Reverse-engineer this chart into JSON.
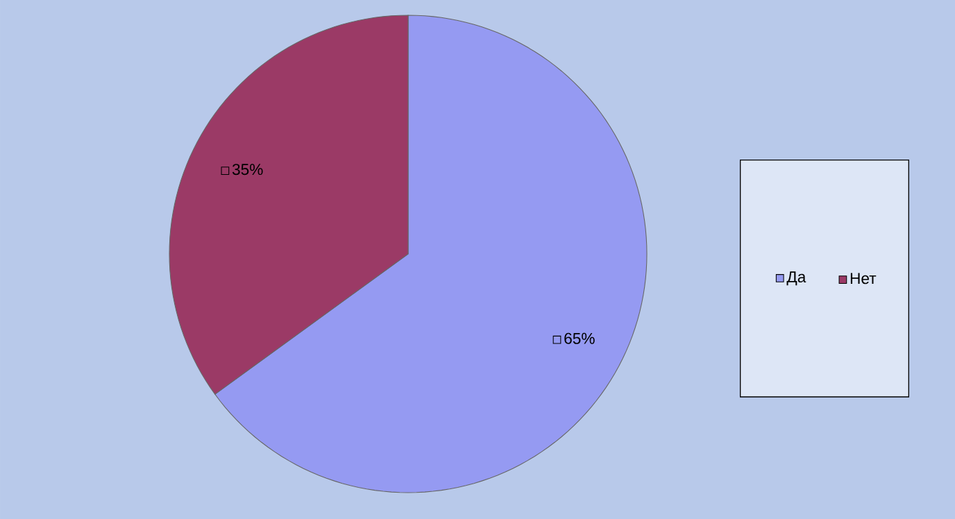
{
  "chart_data": {
    "type": "pie",
    "categories": [
      "Да",
      "Нет"
    ],
    "values": [
      65,
      35
    ],
    "colors": [
      "#959af2",
      "#9b3a66"
    ],
    "value_labels": [
      "65%",
      "35%"
    ],
    "legend": "right"
  }
}
